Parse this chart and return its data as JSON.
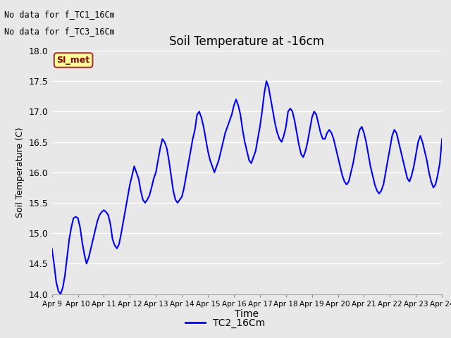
{
  "title": "Soil Temperature at -16cm",
  "xlabel": "Time",
  "ylabel": "Soil Temperature (C)",
  "ylim": [
    14.0,
    18.0
  ],
  "yticks": [
    14.0,
    14.5,
    15.0,
    15.5,
    16.0,
    16.5,
    17.0,
    17.5,
    18.0
  ],
  "line_color": "blue",
  "line_width": 1.5,
  "bg_color": "#e8e8e8",
  "plot_bg_color": "#e8e8e8",
  "legend_label": "TC2_16Cm",
  "legend_line_color": "blue",
  "no_data_text1": "No data for f_TC1_16Cm",
  "no_data_text2": "No data for f_TC3_16Cm",
  "si_met_label": "SI_met",
  "xtick_labels": [
    "Apr 9",
    "Apr 10",
    "Apr 11",
    "Apr 12",
    "Apr 13",
    "Apr 14",
    "Apr 15",
    "Apr 16",
    "Apr 17",
    "Apr 18",
    "Apr 19",
    "Apr 20",
    "Apr 21",
    "Apr 22",
    "Apr 23",
    "Apr 24"
  ],
  "time_data": [
    0.0,
    0.083,
    0.167,
    0.25,
    0.333,
    0.417,
    0.5,
    0.583,
    0.667,
    0.75,
    0.833,
    0.917,
    1.0,
    1.083,
    1.167,
    1.25,
    1.333,
    1.417,
    1.5,
    1.583,
    1.667,
    1.75,
    1.833,
    1.917,
    2.0,
    2.083,
    2.167,
    2.25,
    2.333,
    2.417,
    2.5,
    2.583,
    2.667,
    2.75,
    2.833,
    2.917,
    3.0,
    3.083,
    3.167,
    3.25,
    3.333,
    3.417,
    3.5,
    3.583,
    3.667,
    3.75,
    3.833,
    3.917,
    4.0,
    4.083,
    4.167,
    4.25,
    4.333,
    4.417,
    4.5,
    4.583,
    4.667,
    4.75,
    4.833,
    4.917,
    5.0,
    5.083,
    5.167,
    5.25,
    5.333,
    5.417,
    5.5,
    5.583,
    5.667,
    5.75,
    5.833,
    5.917,
    6.0,
    6.083,
    6.167,
    6.25,
    6.333,
    6.417,
    6.5,
    6.583,
    6.667,
    6.75,
    6.833,
    6.917,
    7.0,
    7.083,
    7.167,
    7.25,
    7.333,
    7.417,
    7.5,
    7.583,
    7.667,
    7.75,
    7.833,
    7.917,
    8.0,
    8.083,
    8.167,
    8.25,
    8.333,
    8.417,
    8.5,
    8.583,
    8.667,
    8.75,
    8.833,
    8.917,
    9.0,
    9.083,
    9.167,
    9.25,
    9.333,
    9.417,
    9.5,
    9.583,
    9.667,
    9.75,
    9.833,
    9.917,
    10.0,
    10.083,
    10.167,
    10.25,
    10.333,
    10.417,
    10.5,
    10.583,
    10.667,
    10.75,
    10.833,
    10.917,
    11.0,
    11.083,
    11.167,
    11.25,
    11.333,
    11.417,
    11.5,
    11.583,
    11.667,
    11.75,
    11.833,
    11.917,
    12.0,
    12.083,
    12.167,
    12.25,
    12.333,
    12.417,
    12.5,
    12.583,
    12.667,
    12.75,
    12.833,
    12.917,
    13.0,
    13.083,
    13.167,
    13.25,
    13.333,
    13.417,
    13.5,
    13.583,
    13.667,
    13.75,
    13.833,
    13.917,
    14.0,
    14.083,
    14.167,
    14.25,
    14.333,
    14.417,
    14.5,
    14.583,
    14.667,
    14.75,
    14.833,
    14.917,
    15.0
  ],
  "temp_data": [
    14.75,
    14.5,
    14.2,
    14.05,
    14.0,
    14.1,
    14.3,
    14.6,
    14.9,
    15.1,
    15.25,
    15.27,
    15.25,
    15.1,
    14.85,
    14.65,
    14.5,
    14.6,
    14.75,
    14.9,
    15.05,
    15.2,
    15.3,
    15.35,
    15.38,
    15.35,
    15.3,
    15.15,
    14.9,
    14.8,
    14.75,
    14.82,
    15.0,
    15.2,
    15.4,
    15.6,
    15.8,
    15.95,
    16.1,
    16.0,
    15.9,
    15.7,
    15.55,
    15.5,
    15.55,
    15.62,
    15.75,
    15.9,
    16.0,
    16.2,
    16.4,
    16.55,
    16.5,
    16.4,
    16.2,
    15.95,
    15.7,
    15.55,
    15.5,
    15.55,
    15.6,
    15.75,
    15.95,
    16.15,
    16.35,
    16.55,
    16.7,
    16.95,
    17.0,
    16.9,
    16.75,
    16.55,
    16.35,
    16.2,
    16.1,
    16.0,
    16.1,
    16.2,
    16.35,
    16.5,
    16.65,
    16.75,
    16.85,
    16.95,
    17.1,
    17.2,
    17.1,
    16.95,
    16.7,
    16.5,
    16.35,
    16.2,
    16.15,
    16.25,
    16.35,
    16.55,
    16.75,
    17.0,
    17.3,
    17.5,
    17.4,
    17.2,
    17.0,
    16.8,
    16.65,
    16.55,
    16.5,
    16.6,
    16.75,
    17.0,
    17.05,
    17.0,
    16.85,
    16.65,
    16.45,
    16.3,
    16.25,
    16.35,
    16.5,
    16.7,
    16.9,
    17.0,
    16.95,
    16.8,
    16.65,
    16.55,
    16.55,
    16.65,
    16.7,
    16.65,
    16.55,
    16.4,
    16.25,
    16.1,
    15.95,
    15.85,
    15.8,
    15.85,
    16.0,
    16.15,
    16.35,
    16.55,
    16.7,
    16.75,
    16.65,
    16.5,
    16.3,
    16.1,
    15.95,
    15.8,
    15.7,
    15.65,
    15.7,
    15.8,
    16.0,
    16.2,
    16.4,
    16.6,
    16.7,
    16.65,
    16.5,
    16.35,
    16.2,
    16.05,
    15.9,
    15.85,
    15.95,
    16.1,
    16.3,
    16.5,
    16.6,
    16.5,
    16.35,
    16.2,
    16.0,
    15.85,
    15.75,
    15.8,
    15.95,
    16.15,
    16.55
  ]
}
